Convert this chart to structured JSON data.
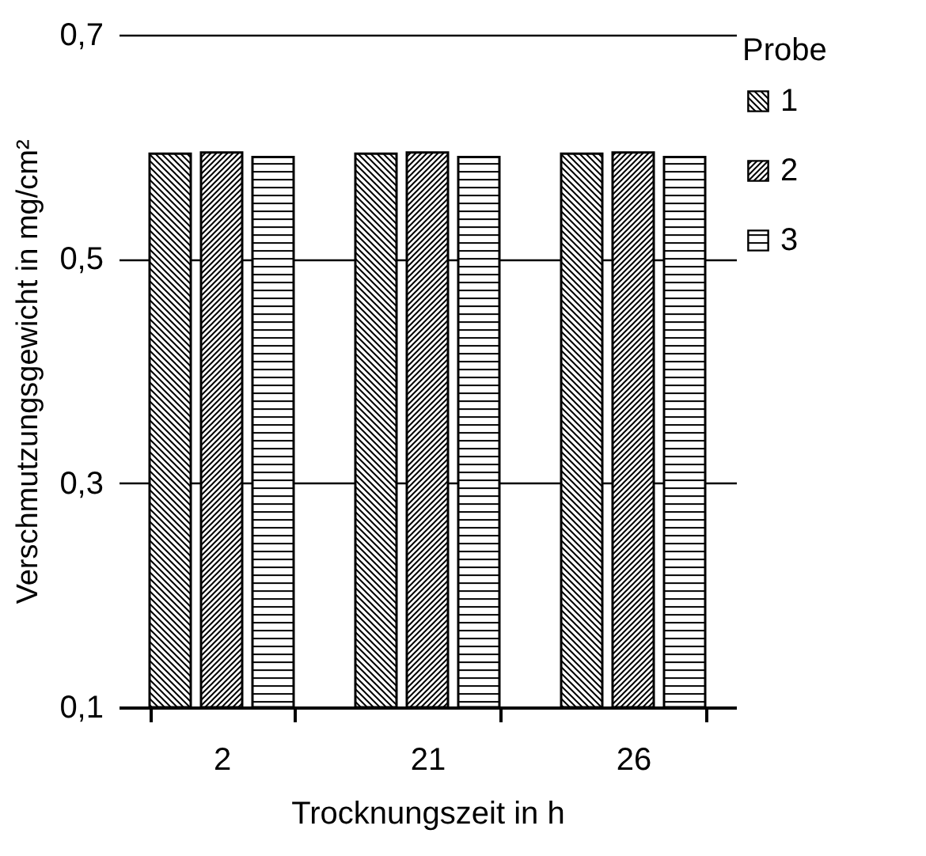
{
  "chart_data": {
    "type": "bar",
    "xlabel": "Trocknungszeit in h",
    "ylabel": "Verschmutzungsgewicht in mg/cm²",
    "legend_title": "Probe",
    "categories": [
      "2",
      "21",
      "26"
    ],
    "series": [
      {
        "name": "1",
        "color": "#000000",
        "values": [
          0.594,
          0.594,
          0.594
        ]
      },
      {
        "name": "2",
        "color": "#000000",
        "values": [
          0.595,
          0.595,
          0.595
        ]
      },
      {
        "name": "3",
        "color": "#000000",
        "values": [
          0.591,
          0.591,
          0.591
        ]
      }
    ],
    "ylim": [
      0.1,
      0.7
    ],
    "yticks": [
      {
        "value": 0.1,
        "label": "0,1"
      },
      {
        "value": 0.3,
        "label": "0,3"
      },
      {
        "value": 0.5,
        "label": "0,5"
      },
      {
        "value": 0.7,
        "label": "0,7"
      }
    ],
    "grid": "y",
    "legend": "right"
  }
}
